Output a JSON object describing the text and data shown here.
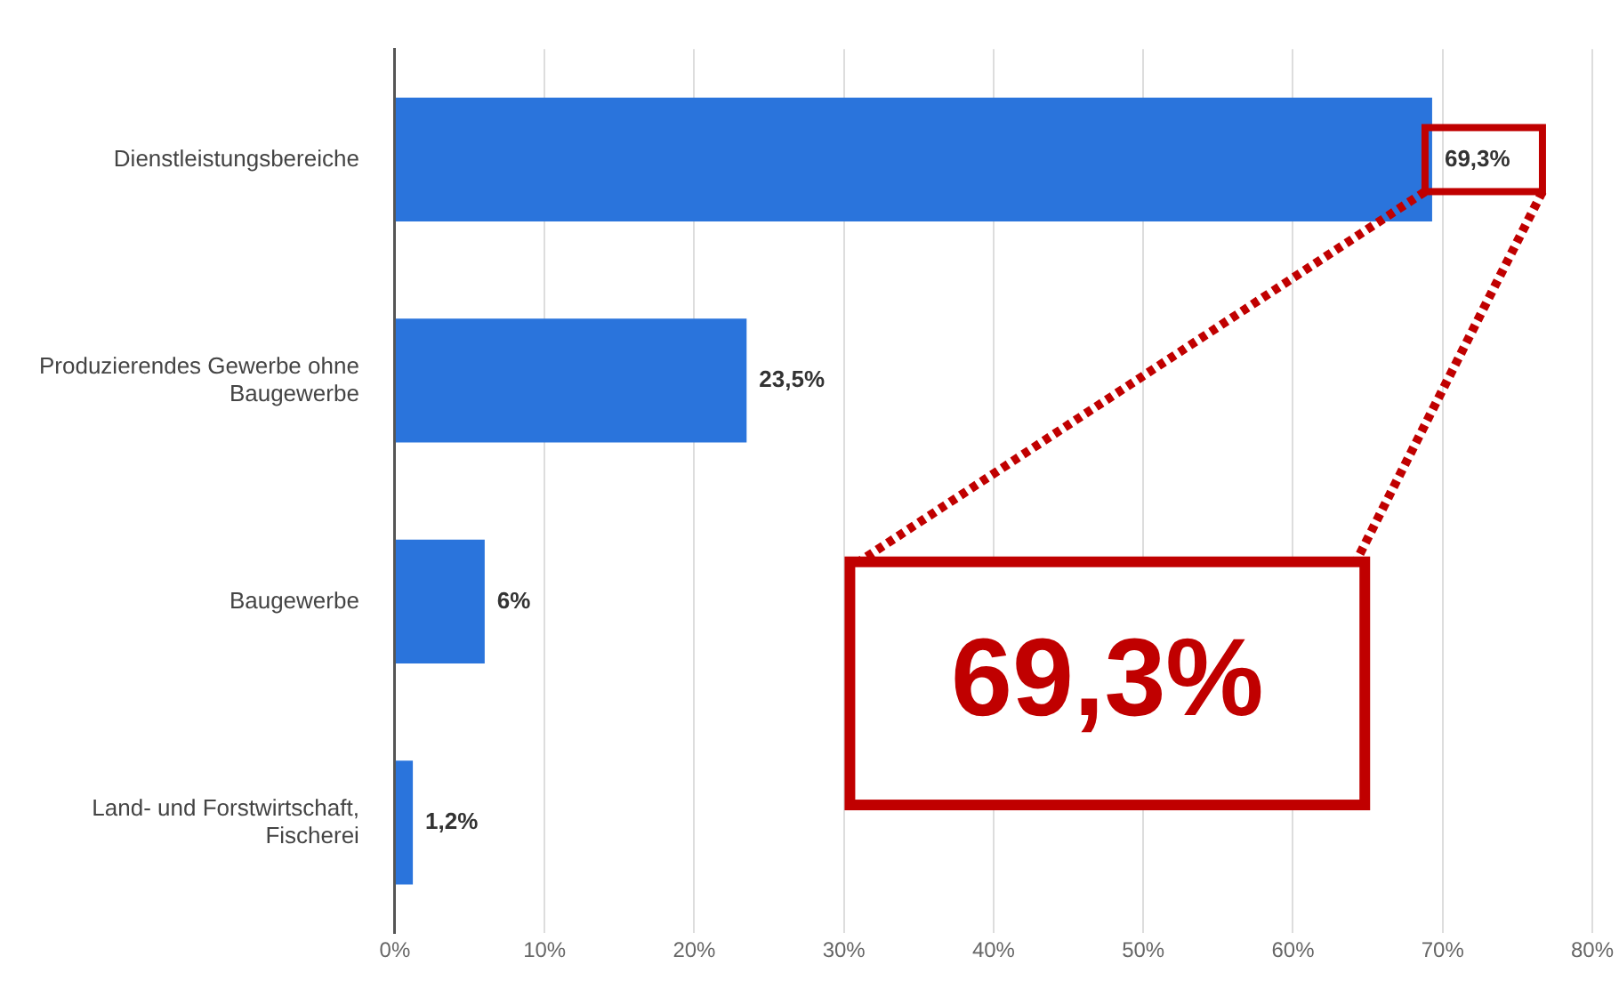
{
  "chart_data": {
    "type": "bar",
    "orientation": "horizontal",
    "categories": [
      "Dienstleistungsbereiche",
      "Produzierendes Gewerbe ohne Baugewerbe",
      "Baugewerbe",
      "Land- und Forstwirtschaft, Fischerei"
    ],
    "values": [
      69.3,
      23.5,
      6,
      1.2
    ],
    "value_labels": [
      "69,3%",
      "23,5%",
      "6%",
      "1,2%"
    ],
    "color": "#2a74dc",
    "xlim": [
      0,
      80
    ],
    "xticks": [
      {
        "value": 0,
        "label": "0%"
      },
      {
        "value": 10,
        "label": "10%"
      },
      {
        "value": 20,
        "label": "20%"
      },
      {
        "value": 30,
        "label": "30%"
      },
      {
        "value": 40,
        "label": "40%"
      },
      {
        "value": 50,
        "label": "50%"
      },
      {
        "value": 60,
        "label": "60%"
      },
      {
        "value": 70,
        "label": "70%"
      },
      {
        "value": 80,
        "label": "80%"
      }
    ],
    "grid": "x",
    "legend": false,
    "annotations": [
      "69,3%"
    ]
  }
}
